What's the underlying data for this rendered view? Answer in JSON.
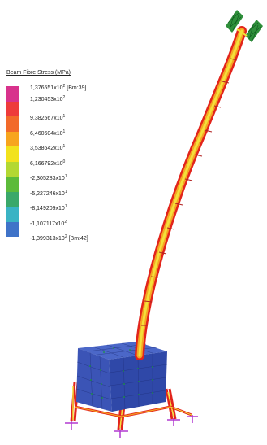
{
  "legend": {
    "title": "Beam Fibre Stress  (MPa)",
    "entries": [
      {
        "mantissa": "1,376551",
        "exp": "2",
        "tag": "[Bm:39]"
      },
      {
        "mantissa": "1,230453",
        "exp": "2",
        "tag": ""
      },
      {
        "mantissa": "9,382567",
        "exp": "1",
        "tag": ""
      },
      {
        "mantissa": "6,460604",
        "exp": "1",
        "tag": ""
      },
      {
        "mantissa": "3,538642",
        "exp": "1",
        "tag": ""
      },
      {
        "mantissa": "6,166792",
        "exp": "0",
        "tag": ""
      },
      {
        "mantissa": "-2,305283",
        "exp": "1",
        "tag": ""
      },
      {
        "mantissa": "-5,227246",
        "exp": "1",
        "tag": ""
      },
      {
        "mantissa": "-8,149209",
        "exp": "1",
        "tag": ""
      },
      {
        "mantissa": "-1,107117",
        "exp": "2",
        "tag": ""
      },
      {
        "mantissa": "-1,399313",
        "exp": "2",
        "tag": "[Bm:42]"
      }
    ],
    "colors": [
      "#d8328c",
      "#ee3b3b",
      "#f26a2a",
      "#f7a51e",
      "#f2e21c",
      "#b3d832",
      "#5cbb3a",
      "#3aa86a",
      "#3ab3c4",
      "#3f73c8",
      "#2d2f86"
    ]
  },
  "colors": {
    "background": "#ffffff",
    "cube": "#3b54b6",
    "cube_dark": "#2a3d93",
    "mesh_node": "#1a9a3a",
    "beam_outer": "#e2241b",
    "beam_mid": "#f5a623",
    "beam_inner": "#f3e03a",
    "panel": "#2e8f3a",
    "support": "#b23ad0"
  }
}
